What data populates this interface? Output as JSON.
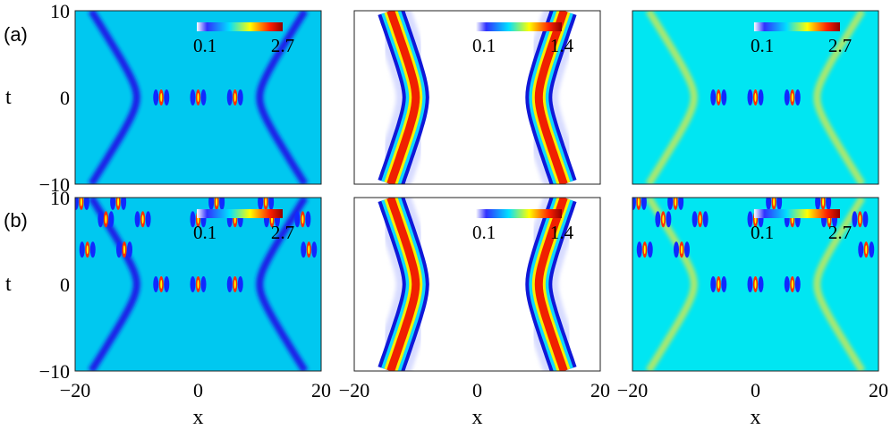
{
  "panel_labels": [
    "(a)",
    "(b)"
  ],
  "chart_data": {
    "type": "heatmap",
    "xlabel": "x",
    "ylabel": "t",
    "xlim": [
      -20,
      20
    ],
    "ylim": [
      -10,
      10
    ],
    "x_ticks": [
      "−20",
      "0",
      "20"
    ],
    "y_ticks": [
      "−10",
      "0",
      "10"
    ],
    "colormap": [
      "#ffffff",
      "#0000ff",
      "#00ffff",
      "#ffff00",
      "#ff0000",
      "#800000"
    ],
    "columns": [
      {
        "colorbar": {
          "min": "0.1",
          "max": "2.7"
        }
      },
      {
        "colorbar": {
          "min": "0.1",
          "max": "1.4"
        }
      },
      {
        "colorbar": {
          "min": "0.1",
          "max": "2.7"
        }
      }
    ]
  }
}
